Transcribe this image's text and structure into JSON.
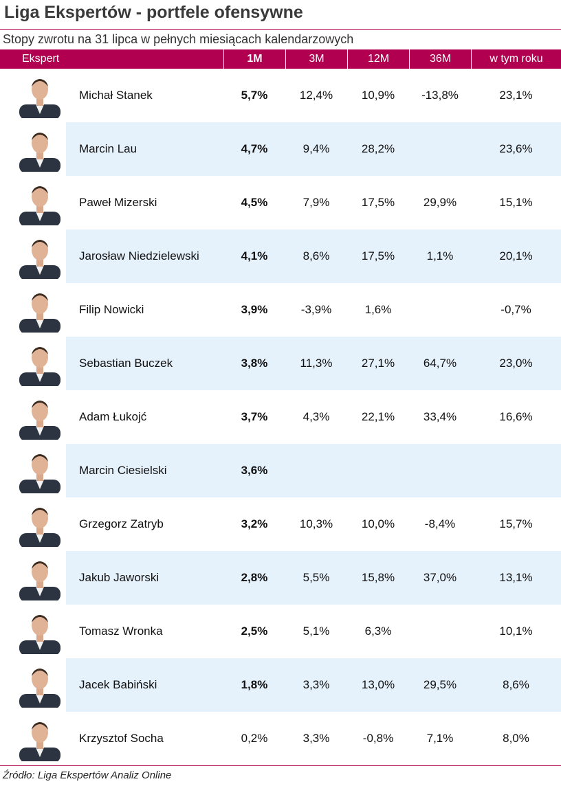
{
  "header": {
    "title": "Liga Ekspertów - portfele ofensywne",
    "subtitle": "Stopy zwrotu na 31 lipca w pełnych miesiącach kalendarzowych"
  },
  "table": {
    "columns": [
      "Ekspert",
      "1M",
      "3M",
      "12M",
      "36M",
      "w tym roku"
    ],
    "rows": [
      {
        "name": "Michał Stanek",
        "cells": [
          "5,7%",
          "12,4%",
          "10,9%",
          "-13,8%",
          "23,1%"
        ],
        "emphasis": true
      },
      {
        "name": "Marcin Lau",
        "cells": [
          "4,7%",
          "9,4%",
          "28,2%",
          null,
          "23,6%"
        ],
        "emphasis": true
      },
      {
        "name": "Paweł Mizerski",
        "cells": [
          "4,5%",
          "7,9%",
          "17,5%",
          "29,9%",
          "15,1%"
        ],
        "emphasis": true
      },
      {
        "name": "Jarosław Niedzielewski",
        "cells": [
          "4,1%",
          "8,6%",
          "17,5%",
          "1,1%",
          "20,1%"
        ],
        "emphasis": true
      },
      {
        "name": "Filip Nowicki",
        "cells": [
          "3,9%",
          "-3,9%",
          "1,6%",
          null,
          "-0,7%"
        ],
        "emphasis": true
      },
      {
        "name": "Sebastian Buczek",
        "cells": [
          "3,8%",
          "11,3%",
          "27,1%",
          "64,7%",
          "23,0%"
        ],
        "emphasis": true
      },
      {
        "name": "Adam Łukojć",
        "cells": [
          "3,7%",
          "4,3%",
          "22,1%",
          "33,4%",
          "16,6%"
        ],
        "emphasis": true
      },
      {
        "name": "Marcin Ciesielski",
        "cells": [
          "3,6%",
          null,
          null,
          null,
          null
        ],
        "emphasis": true
      },
      {
        "name": "Grzegorz Zatryb",
        "cells": [
          "3,2%",
          "10,3%",
          "10,0%",
          "-8,4%",
          "15,7%"
        ],
        "emphasis": true
      },
      {
        "name": "Jakub Jaworski",
        "cells": [
          "2,8%",
          "5,5%",
          "15,8%",
          "37,0%",
          "13,1%"
        ],
        "emphasis": true
      },
      {
        "name": "Tomasz Wronka",
        "cells": [
          "2,5%",
          "5,1%",
          "6,3%",
          null,
          "10,1%"
        ],
        "emphasis": true
      },
      {
        "name": "Jacek Babiński",
        "cells": [
          "1,8%",
          "3,3%",
          "13,0%",
          "29,5%",
          "8,6%"
        ],
        "emphasis": true
      },
      {
        "name": "Krzysztof Socha",
        "cells": [
          "0,2%",
          "3,3%",
          "-0,8%",
          "7,1%",
          "8,0%"
        ],
        "emphasis": false
      }
    ]
  },
  "footer": {
    "source": "Źródło: Liga Ekspertów Analiz Online"
  }
}
